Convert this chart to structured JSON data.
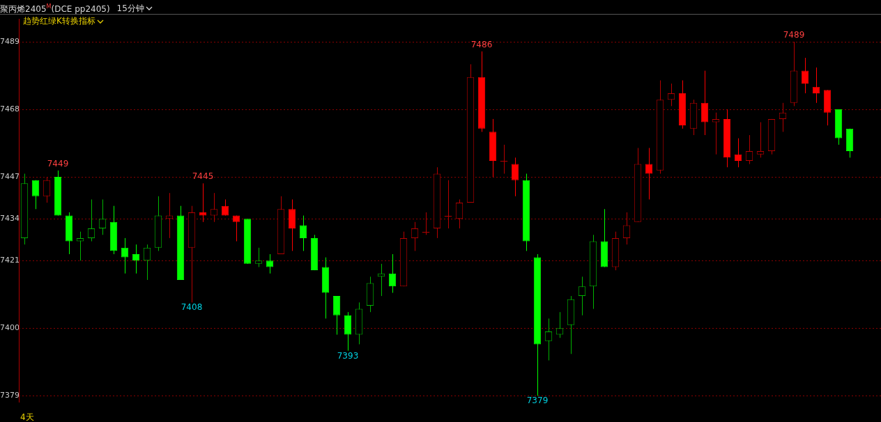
{
  "chart_data": {
    "type": "candlestick",
    "title": "聚丙烯2405$^{M}$(DCE pp2405)",
    "subtitle": "趋势红绿K转换指标",
    "annotations": [
      "15分钟",
      "4天",
      {
        "text": "7449",
        "y": 7449
      },
      {
        "text": "7445",
        "y": 7445
      },
      {
        "text": "7408",
        "y": 7408
      },
      {
        "text": "7393",
        "y": 7393
      },
      {
        "text": "7486",
        "y": 7486
      },
      {
        "text": "7379",
        "y": 7379
      },
      {
        "text": "7489",
        "y": 7489
      }
    ],
    "categories": [
      null,
      null,
      null,
      null,
      null,
      null,
      null,
      null,
      null,
      null,
      null,
      null,
      null,
      null,
      null,
      null,
      null,
      null,
      null,
      null,
      null,
      null,
      null,
      null,
      null,
      null,
      null,
      null,
      null,
      null,
      null,
      null,
      null,
      null,
      null,
      null,
      null,
      null,
      null,
      null,
      null,
      null,
      null,
      null,
      null,
      null,
      null,
      null,
      null,
      null,
      null,
      null,
      null,
      null,
      null,
      null,
      null,
      null,
      null,
      null,
      null,
      null,
      null,
      null,
      null,
      null,
      null,
      null,
      null,
      null,
      null,
      null,
      null,
      null,
      null
    ],
    "ohlc": [
      [
        7428,
        7448,
        7426,
        7445
      ],
      [
        7446,
        7446,
        7437,
        7441
      ],
      [
        7441,
        7447,
        7439,
        7446
      ],
      [
        7447,
        7449,
        7435,
        7435
      ],
      [
        7435,
        7436,
        7423,
        7427
      ],
      [
        7427,
        7430,
        7421,
        7428
      ],
      [
        7428,
        7440,
        7427,
        7431
      ],
      [
        7431,
        7440,
        7429,
        7434
      ],
      [
        7433,
        7438,
        7423,
        7424
      ],
      [
        7425,
        7428,
        7417,
        7422
      ],
      [
        7423,
        7426,
        7417,
        7421
      ],
      [
        7421,
        7426,
        7415,
        7425
      ],
      [
        7425,
        7441,
        7424,
        7435
      ],
      [
        7434,
        7442,
        7428,
        7435
      ],
      [
        7435,
        7438,
        7415,
        7415
      ],
      [
        7425,
        7438,
        7408,
        7436
      ],
      [
        7436,
        7445,
        7433,
        7435
      ],
      [
        7435,
        7442,
        7433,
        7437
      ],
      [
        7438,
        7440,
        7435,
        7435
      ],
      [
        7435,
        7435,
        7427,
        7433
      ],
      [
        7434,
        7434,
        7420,
        7420
      ],
      [
        7420,
        7425,
        7419,
        7421
      ],
      [
        7421,
        7423,
        7417,
        7419
      ],
      [
        7423,
        7441,
        7423,
        7437
      ],
      [
        7437,
        7440,
        7424,
        7431
      ],
      [
        7432,
        7435,
        7424,
        7428
      ],
      [
        7428,
        7429,
        7418,
        7418
      ],
      [
        7419,
        7422,
        7403,
        7411
      ],
      [
        7410,
        7410,
        7398,
        7404
      ],
      [
        7404,
        7405,
        7393,
        7398
      ],
      [
        7398,
        7408,
        7395,
        7406
      ],
      [
        7407,
        7416,
        7405,
        7414
      ],
      [
        7416,
        7420,
        7410,
        7417
      ],
      [
        7417,
        7423,
        7411,
        7413
      ],
      [
        7413,
        7430,
        7413,
        7428
      ],
      [
        7428,
        7433,
        7424,
        7431
      ],
      [
        7430,
        7436,
        7429,
        7430
      ],
      [
        7431,
        7450,
        7428,
        7448
      ],
      [
        7435,
        7446,
        7431,
        7435
      ],
      [
        7434,
        7440,
        7431,
        7439
      ],
      [
        7439,
        7482,
        7439,
        7478
      ],
      [
        7478,
        7486,
        7461,
        7462
      ],
      [
        7461,
        7465,
        7447,
        7452
      ],
      [
        7452,
        7457,
        7448,
        7452
      ],
      [
        7451,
        7453,
        7441,
        7446
      ],
      [
        7446,
        7448,
        7424,
        7427
      ],
      [
        7422,
        7423,
        7379,
        7395
      ],
      [
        7396,
        7403,
        7390,
        7399
      ],
      [
        7398,
        7405,
        7397,
        7400
      ],
      [
        7401,
        7410,
        7392,
        7409
      ],
      [
        7410,
        7416,
        7404,
        7413
      ],
      [
        7413,
        7429,
        7406,
        7427
      ],
      [
        7427,
        7437,
        7419,
        7419
      ],
      [
        7419,
        7430,
        7418,
        7428
      ],
      [
        7428,
        7436,
        7426,
        7432
      ],
      [
        7433,
        7456,
        7433,
        7451
      ],
      [
        7451,
        7456,
        7440,
        7448
      ],
      [
        7449,
        7477,
        7448,
        7471
      ],
      [
        7471,
        7476,
        7469,
        7473
      ],
      [
        7473,
        7477,
        7462,
        7463
      ],
      [
        7462,
        7471,
        7460,
        7470
      ],
      [
        7470,
        7480,
        7460,
        7464
      ],
      [
        7464,
        7467,
        7454,
        7465
      ],
      [
        7465,
        7468,
        7450,
        7453
      ],
      [
        7454,
        7459,
        7450,
        7452
      ],
      [
        7452,
        7460,
        7451,
        7455
      ],
      [
        7454,
        7464,
        7453,
        7455
      ],
      [
        7455,
        7465,
        7454,
        7465
      ],
      [
        7465,
        7470,
        7461,
        7467
      ],
      [
        7470,
        7489,
        7469,
        7480
      ],
      [
        7480,
        7484,
        7473,
        7476
      ],
      [
        7475,
        7481,
        7470,
        7473
      ],
      [
        7474,
        7474,
        7463,
        7467
      ],
      [
        7468,
        7468,
        7457,
        7459
      ],
      [
        7462,
        7462,
        7453,
        7455
      ]
    ],
    "colors": [
      "#00b400",
      "#00ff00",
      "#b40000",
      "#00ff00",
      "#00ff00",
      "#00b400",
      "#00b400",
      "#00b400",
      "#00ff00",
      "#00ff00",
      "#00ff00",
      "#00b400",
      "#00b400",
      "#b40000",
      "#00ff00",
      "#b40000",
      "#ff0000",
      "#b40000",
      "#ff0000",
      "#ff0000",
      "#00ff00",
      "#00b400",
      "#00ff00",
      "#b40000",
      "#ff0000",
      "#00ff00",
      "#00ff00",
      "#00ff00",
      "#00ff00",
      "#00ff00",
      "#00b400",
      "#00b400",
      "#00b400",
      "#00ff00",
      "#b40000",
      "#b40000",
      "#b40000",
      "#b40000",
      "#b40000",
      "#b40000",
      "#b40000",
      "#ff0000",
      "#ff0000",
      "#b40000",
      "#ff0000",
      "#00ff00",
      "#00ff00",
      "#00b400",
      "#00b400",
      "#00b400",
      "#00b400",
      "#00b400",
      "#00ff00",
      "#b40000",
      "#b40000",
      "#b40000",
      "#ff0000",
      "#b40000",
      "#b40000",
      "#ff0000",
      "#b40000",
      "#ff0000",
      "#b40000",
      "#ff0000",
      "#ff0000",
      "#b40000",
      "#b40000",
      "#b40000",
      "#b40000",
      "#b40000",
      "#ff0000",
      "#ff0000",
      "#ff0000",
      "#00ff00",
      "#00ff00"
    ],
    "ylim": [
      7377,
      7496
    ],
    "yticks": [
      7379,
      7400,
      7421,
      7434,
      7447,
      7468,
      7489
    ],
    "grid": "y"
  }
}
